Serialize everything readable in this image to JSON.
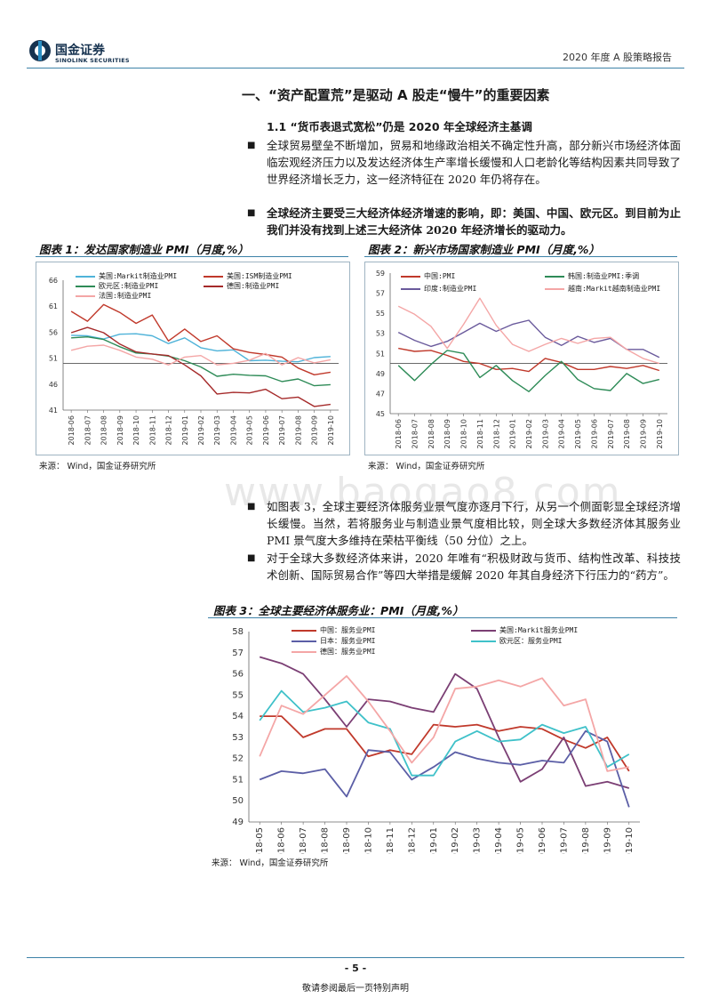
{
  "header": {
    "logo_cn": "国金证券",
    "logo_en": "SINOLINK SECURITIES",
    "report_name": "2020 年度 A 股策略报告"
  },
  "section": {
    "title": "一、“资产配置荒”是驱动 A 股走“慢牛”的重要因素",
    "subtitle": "1.1 “货币表退式宽松”仍是 2020 年全球经济主基调"
  },
  "paragraphs": {
    "p1": "全球贸易壁垒不断增加，贸易和地缘政治相关不确定性升高，部分新兴市场经济体面临宏观经济压力以及发达经济体生产率增长缓慢和人口老龄化等结构因素共同导致了世界经济增长乏力，这一经济特征在 2020 年仍将存在。",
    "p2": "全球经济主要受三大经济体经济增速的影响，即：美国、中国、欧元区。到目前为止我们并没有找到上述三大经济体 2020 年经济增长的驱动力。",
    "p3": "如图表 3，全球主要经济体服务业景气度亦逐月下行，从另一个侧面彰显全球经济增长缓慢。当然，若将服务业与制造业景气度相比较，则全球大多数经济体其服务业 PMI 景气度大多维持在荣枯平衡线（50 分位）之上。",
    "p4": "对于全球大多数经济体来讲，2020 年唯有“积极财政与货币、结构性改革、科技技术创新、国际贸易合作”等四大举措是缓解 2020 年其自身经济下行压力的“药方”。"
  },
  "watermark": "www.baogao8.com",
  "source_text": "来源：  Wind，国金证券研究所",
  "footer": {
    "page": "- 5 -",
    "note": "敬请参阅最后一页特别声明"
  },
  "chart_data": [
    {
      "id": "chart1",
      "type": "line",
      "title": "图表 1：发达国家制造业 PMI（月度,%）",
      "categories": [
        "2018-06",
        "2018-07",
        "2018-08",
        "2018-09",
        "2018-10",
        "2018-11",
        "2018-12",
        "2019-01",
        "2019-02",
        "2019-03",
        "2019-04",
        "2019-05",
        "2019-06",
        "2019-07",
        "2019-08",
        "2019-09",
        "2019-10"
      ],
      "ylim": [
        41,
        66
      ],
      "yticks": [
        41,
        46,
        51,
        56,
        61,
        66
      ],
      "baseline": 50,
      "series": [
        {
          "name": "美国:Markit制造业PMI",
          "color": "#4fb3d9",
          "values": [
            55.4,
            55.3,
            54.7,
            55.6,
            55.7,
            55.3,
            53.8,
            54.9,
            53.0,
            52.4,
            52.6,
            50.5,
            50.6,
            50.4,
            50.3,
            51.1,
            51.3
          ]
        },
        {
          "name": "美国:ISM制造业PMI",
          "color": "#c0392b",
          "values": [
            60.0,
            58.1,
            61.3,
            59.8,
            57.7,
            59.3,
            54.3,
            56.6,
            54.2,
            55.3,
            52.8,
            52.1,
            51.7,
            51.2,
            49.1,
            47.8,
            48.3
          ]
        },
        {
          "name": "欧元区:制造业PMI",
          "color": "#2e8b57",
          "values": [
            54.9,
            55.1,
            54.6,
            53.2,
            52.0,
            51.8,
            51.4,
            50.5,
            49.3,
            47.5,
            47.9,
            47.7,
            47.6,
            46.5,
            47.0,
            45.7,
            45.9
          ]
        },
        {
          "name": "德国:制造业PMI",
          "color": "#a52a2a",
          "values": [
            55.9,
            56.9,
            55.9,
            53.7,
            52.2,
            51.8,
            51.5,
            49.7,
            47.6,
            44.1,
            44.4,
            44.3,
            45.0,
            43.2,
            43.5,
            41.7,
            42.1
          ]
        },
        {
          "name": "法国:制造业PMI",
          "color": "#f4a6a6",
          "values": [
            52.5,
            53.3,
            53.5,
            52.5,
            51.2,
            50.8,
            49.7,
            51.2,
            51.5,
            49.7,
            50.0,
            50.6,
            51.9,
            49.7,
            51.1,
            50.1,
            50.7
          ]
        }
      ]
    },
    {
      "id": "chart2",
      "type": "line",
      "title": "图表 2：新兴市场国家制造业 PMI（月度,%）",
      "categories": [
        "2018-06",
        "2018-07",
        "2018-08",
        "2018-09",
        "2018-10",
        "2018-11",
        "2018-12",
        "2019-01",
        "2019-02",
        "2019-03",
        "2019-04",
        "2019-05",
        "2019-06",
        "2019-07",
        "2019-08",
        "2019-09",
        "2019-10"
      ],
      "ylim": [
        45,
        59
      ],
      "yticks": [
        45,
        47,
        49,
        51,
        53,
        55,
        57,
        59
      ],
      "baseline": 50,
      "series": [
        {
          "name": "中国:PMI",
          "color": "#c0392b",
          "values": [
            51.5,
            51.2,
            51.3,
            50.8,
            50.2,
            50.0,
            49.4,
            49.5,
            49.2,
            50.5,
            50.1,
            49.4,
            49.4,
            49.7,
            49.5,
            49.8,
            49.3
          ]
        },
        {
          "name": "印度:制造业PMI",
          "color": "#6a5a9c",
          "values": [
            53.1,
            52.3,
            51.7,
            52.2,
            53.1,
            54.0,
            53.2,
            53.9,
            54.3,
            52.6,
            51.8,
            52.7,
            52.1,
            52.5,
            51.4,
            51.4,
            50.6
          ]
        },
        {
          "name": "韩国:制造业PMI:季调",
          "color": "#2e8b57",
          "values": [
            49.8,
            48.3,
            49.9,
            51.3,
            51.0,
            48.6,
            49.8,
            48.3,
            47.2,
            48.8,
            50.2,
            48.4,
            47.5,
            47.3,
            49.0,
            48.0,
            48.4
          ]
        },
        {
          "name": "越南:Markit越南制造业PMI",
          "color": "#f4a6a6",
          "values": [
            55.7,
            54.9,
            53.7,
            51.5,
            53.9,
            56.5,
            53.8,
            51.9,
            51.2,
            51.9,
            52.5,
            52.0,
            52.5,
            52.6,
            51.4,
            50.5,
            50.0
          ]
        }
      ]
    },
    {
      "id": "chart3",
      "type": "line",
      "title": "图表 3：全球主要经济体服务业：PMI（月度,%）",
      "categories": [
        "2018-05",
        "2018-06",
        "2018-07",
        "2018-08",
        "2018-09",
        "2018-10",
        "2018-11",
        "2018-12",
        "2019-01",
        "2019-02",
        "2019-03",
        "2019-04",
        "2019-05",
        "2019-06",
        "2019-07",
        "2019-08",
        "2019-09",
        "2019-10"
      ],
      "ylim": [
        49,
        58
      ],
      "yticks": [
        49,
        50,
        51,
        52,
        53,
        54,
        55,
        56,
        57,
        58
      ],
      "series": [
        {
          "name": "中国：服务业PMI",
          "color": "#c0392b",
          "values": [
            54.0,
            54.0,
            53.0,
            53.4,
            53.4,
            52.1,
            52.4,
            52.2,
            53.6,
            53.5,
            53.6,
            53.3,
            53.5,
            53.4,
            52.9,
            52.5,
            53.0,
            51.4
          ]
        },
        {
          "name": "美国:Markit服务业PMI",
          "color": "#7b3f74",
          "values": [
            56.8,
            56.5,
            56.0,
            54.8,
            53.5,
            54.8,
            54.7,
            54.4,
            54.2,
            56.0,
            55.3,
            53.0,
            50.9,
            51.5,
            53.0,
            50.7,
            50.9,
            50.6
          ]
        },
        {
          "name": "日本：服务业PMI",
          "color": "#5b5ea6",
          "values": [
            51.0,
            51.4,
            51.3,
            51.5,
            50.2,
            52.4,
            52.3,
            51.0,
            51.6,
            52.3,
            52.0,
            51.8,
            51.7,
            51.9,
            51.8,
            53.3,
            52.8,
            49.7
          ]
        },
        {
          "name": "欧元区：服务业PMI",
          "color": "#3fc1c9",
          "values": [
            53.8,
            55.2,
            54.2,
            54.4,
            54.7,
            53.7,
            53.4,
            51.2,
            51.2,
            52.8,
            53.3,
            52.8,
            52.9,
            53.6,
            53.2,
            53.5,
            51.6,
            52.2
          ]
        },
        {
          "name": "德国：服务业PMI",
          "color": "#f4a6a6",
          "values": [
            52.1,
            54.5,
            54.1,
            55.0,
            55.9,
            54.7,
            53.3,
            51.8,
            53.0,
            55.3,
            55.4,
            55.7,
            55.4,
            55.8,
            54.5,
            54.8,
            51.4,
            51.6
          ]
        }
      ]
    }
  ]
}
